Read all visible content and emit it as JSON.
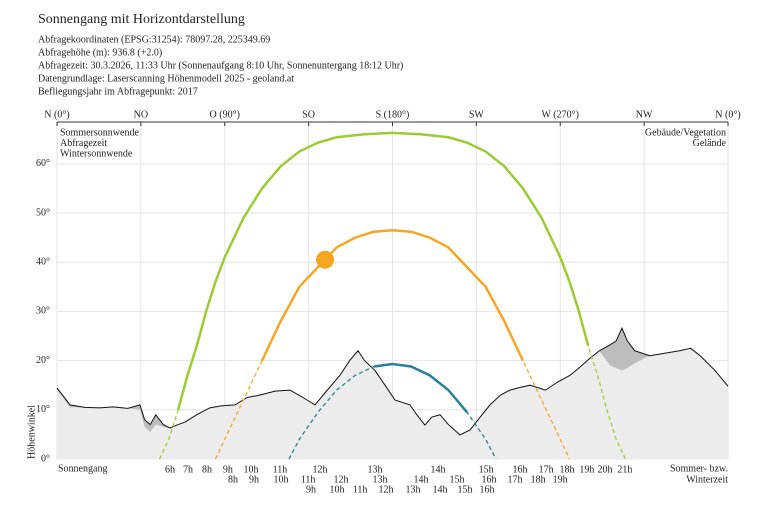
{
  "chart_data": {
    "type": "line",
    "title": "Sonnengang mit Horizontdarstellung",
    "info_lines": [
      "Abfragekoordinaten (EPSG:31254): 78097.28, 225349.69",
      "Abfragehöhe (m): 936.8 (+2.0)",
      "Abfragezeit: 30.3.2026, 11:33 Uhr (Sonnenaufgang 8:10 Uhr,  Sonnenuntergang 18:12 Uhr)",
      "Datengrundlage: Laserscanning Höhenmodell 2025 - geoland.at",
      "Befliegungsjahr im Abfragepunkt: 2017"
    ],
    "y_label": "Höhenwinkel",
    "bottom_left": "Sonnengang",
    "bottom_right": [
      "Sommer- bzw.",
      "Winterzeit"
    ],
    "xlim": [
      0,
      360
    ],
    "ylim": [
      0,
      68.5
    ],
    "grid": true,
    "xticks": [
      {
        "value": 0,
        "label": "N (0°)"
      },
      {
        "value": 45,
        "label": "NO"
      },
      {
        "value": 90,
        "label": "O (90°)"
      },
      {
        "value": 135,
        "label": "SO"
      },
      {
        "value": 180,
        "label": "S (180°)"
      },
      {
        "value": 225,
        "label": "SW"
      },
      {
        "value": 270,
        "label": "W (270°)"
      },
      {
        "value": 315,
        "label": "NW"
      },
      {
        "value": 360,
        "label": "N (0°)"
      }
    ],
    "yticks": [
      {
        "value": 0,
        "label": "0°"
      },
      {
        "value": 10,
        "label": "10°"
      },
      {
        "value": 20,
        "label": "20°"
      },
      {
        "value": 30,
        "label": "30°"
      },
      {
        "value": 40,
        "label": "40°"
      },
      {
        "value": 50,
        "label": "50°"
      },
      {
        "value": 60,
        "label": "60°"
      }
    ],
    "series": [
      {
        "name": "Sommersonnwende",
        "color": "#9acd32",
        "x": [
          55,
          60,
          65,
          70,
          75,
          80,
          85,
          90,
          100,
          110,
          120,
          130,
          140,
          150,
          165,
          180,
          195,
          210,
          220,
          230,
          240,
          250,
          260,
          270,
          275,
          280,
          285,
          290,
          295,
          300,
          305
        ],
        "values": [
          0,
          4,
          10,
          17,
          23,
          30,
          36,
          41,
          49,
          55,
          59.5,
          62.5,
          64.3,
          65.4,
          66,
          66.3,
          66,
          65.4,
          64.3,
          62.5,
          59.5,
          55,
          49,
          41,
          36,
          30,
          23,
          17,
          10,
          4,
          0
        ],
        "hours": [
          {
            "value": 60.6,
            "label": "6h"
          },
          {
            "value": 70.3,
            "label": "7h"
          },
          {
            "value": 80.5,
            "label": "8h"
          },
          {
            "value": 91.7,
            "label": "9h"
          },
          {
            "value": 104.1,
            "label": "10h"
          },
          {
            "value": 119.6,
            "label": "11h"
          },
          {
            "value": 141.1,
            "label": "12h"
          },
          {
            "value": 170.6,
            "label": "13h"
          },
          {
            "value": 204.4,
            "label": "14h"
          },
          {
            "value": 230.2,
            "label": "15h"
          },
          {
            "value": 248.4,
            "label": "16h"
          },
          {
            "value": 262.4,
            "label": "17h"
          },
          {
            "value": 273.6,
            "label": "18h"
          },
          {
            "value": 284.3,
            "label": "19h"
          },
          {
            "value": 294.0,
            "label": "20h"
          },
          {
            "value": 304.7,
            "label": "21h"
          }
        ]
      },
      {
        "name": "Abfragezeit",
        "color": "#f5a623",
        "x": [
          85,
          90,
          100,
          110,
          120,
          130,
          143.8,
          150,
          160,
          170,
          180,
          190,
          200,
          210,
          216.2,
          230,
          240,
          250,
          260,
          270,
          275
        ],
        "values": [
          0,
          4,
          12,
          20,
          28,
          35,
          40.5,
          43,
          45,
          46.2,
          46.5,
          46.2,
          45,
          43,
          40.5,
          35,
          28,
          20,
          12,
          4,
          0
        ],
        "hours": [
          {
            "value": 94.4,
            "label": "8h"
          },
          {
            "value": 105.7,
            "label": "9h"
          },
          {
            "value": 120.2,
            "label": "10h"
          },
          {
            "value": 134.7,
            "label": "11h"
          },
          {
            "value": 152.4,
            "label": "12h"
          },
          {
            "value": 173.3,
            "label": "13h"
          },
          {
            "value": 195.3,
            "label": "14h"
          },
          {
            "value": 214.6,
            "label": "15h"
          },
          {
            "value": 231.8,
            "label": "16h"
          },
          {
            "value": 245.7,
            "label": "17h"
          },
          {
            "value": 258.1,
            "label": "18h"
          },
          {
            "value": 269.9,
            "label": "19h"
          }
        ]
      },
      {
        "name": "Wintersonnwende",
        "color": "#2a7f9a",
        "x": [
          124.5,
          130,
          140,
          150,
          160,
          170,
          180,
          190,
          200,
          210,
          220,
          230,
          235.5
        ],
        "values": [
          0,
          4,
          9.5,
          14,
          17,
          18.8,
          19.3,
          18.8,
          17,
          14,
          9.5,
          4,
          0
        ],
        "hours": [
          {
            "value": 136.3,
            "label": "9h"
          },
          {
            "value": 150.2,
            "label": "10h"
          },
          {
            "value": 162.6,
            "label": "11h"
          },
          {
            "value": 176.5,
            "label": "12h"
          },
          {
            "value": 191.0,
            "label": "13h"
          },
          {
            "value": 205.5,
            "label": "14h"
          },
          {
            "value": 218.9,
            "label": "15h"
          },
          {
            "value": 230.7,
            "label": "16h"
          }
        ]
      }
    ],
    "sun": {
      "azimuth": 143.8,
      "altitude": 40.5,
      "color": "#f5a623"
    },
    "terrain": {
      "x": [
        0,
        3,
        7,
        15,
        23,
        30,
        38,
        44.5,
        47,
        50,
        53,
        57,
        60.6,
        65,
        68.7,
        75,
        82,
        88,
        95.5,
        102,
        109,
        117,
        125,
        132,
        138.4,
        145,
        151.8,
        157,
        161.5,
        165,
        170.6,
        176,
        181.3,
        189.4,
        193,
        197.4,
        201,
        205.5,
        210,
        216.2,
        221.6,
        227,
        232.3,
        238,
        243,
        248,
        253.8,
        262,
        268,
        275.2,
        280,
        286,
        291,
        296.7,
        300,
        303.1,
        306,
        310,
        318,
        326,
        334,
        340,
        345,
        353,
        360
      ],
      "series": [
        {
          "name": "Gebäude/Vegetation",
          "color": "#555555",
          "values": [
            14.4,
            13,
            11,
            10.5,
            10.4,
            10.6,
            10.3,
            11,
            8,
            7,
            9,
            7,
            6.3,
            7,
            7.5,
            9,
            10.4,
            10.8,
            11,
            12.5,
            13,
            13.8,
            14,
            12.5,
            11,
            14,
            17,
            20,
            22,
            20,
            18,
            15,
            12,
            11,
            9,
            6.9,
            8.5,
            9,
            7,
            4.9,
            5.9,
            8.5,
            11,
            13,
            14,
            14.5,
            15,
            14,
            15.5,
            17,
            18.5,
            20.5,
            22,
            23.2,
            24,
            26.6,
            24,
            22,
            21,
            21.5,
            22,
            22.5,
            21,
            18,
            14.8
          ]
        },
        {
          "name": "Gelände",
          "color": "#bbbbbb",
          "values": [
            14,
            12.5,
            10.5,
            10.5,
            10.4,
            10.6,
            10.3,
            10,
            6.5,
            5.5,
            7,
            6.5,
            6.3,
            7,
            7.5,
            9,
            10.4,
            10.8,
            11,
            12.5,
            13,
            13.8,
            14,
            12.5,
            11,
            14,
            17,
            20,
            22,
            20,
            18,
            15,
            12,
            11,
            9,
            6.9,
            8.5,
            9,
            7,
            4.9,
            5.9,
            8.5,
            11,
            13,
            14,
            14.5,
            15,
            14,
            15.5,
            17,
            18.5,
            20.5,
            22,
            19,
            18.5,
            18,
            18.5,
            19.5,
            21,
            21.5,
            22,
            22.5,
            21,
            18,
            14.8
          ]
        }
      ]
    }
  }
}
